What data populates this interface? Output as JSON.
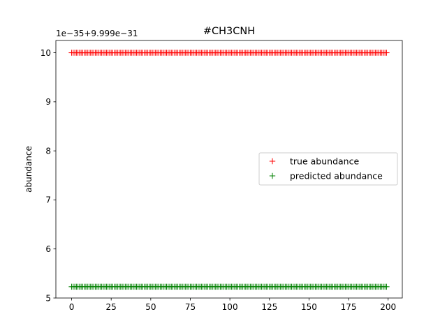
{
  "chart_data": {
    "type": "scatter",
    "title": "#CH3CNH",
    "xlabel": "",
    "ylabel": "abundance",
    "y_offset_label": "1e−35+9.999e−31",
    "xlim": [
      -9.95,
      208.95
    ],
    "ylim": [
      5.0,
      10.25
    ],
    "x_ticks": [
      0,
      25,
      50,
      75,
      100,
      125,
      150,
      175,
      200
    ],
    "y_ticks": [
      5,
      6,
      7,
      8,
      9,
      10
    ],
    "x_tick_labels": [
      "0",
      "25",
      "50",
      "75",
      "100",
      "125",
      "150",
      "175",
      "200"
    ],
    "y_tick_labels": [
      "5",
      "6",
      "7",
      "8",
      "9",
      "10"
    ],
    "grid": false,
    "legend_position": "center-right",
    "marker": "+",
    "x_range": {
      "start": 0,
      "end": 199,
      "step": 1
    },
    "series": [
      {
        "name": "true abundance",
        "color": "#ff0000",
        "constant_value": 10.0
      },
      {
        "name": "predicted abundance",
        "color": "#008000",
        "constant_value": 5.23
      }
    ]
  }
}
